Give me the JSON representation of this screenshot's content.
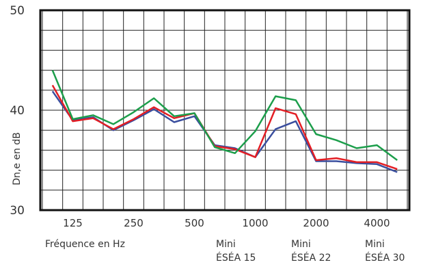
{
  "chart_data": {
    "type": "line",
    "ylabel": "Dn,e en dB",
    "xlabel": "Fréquence en Hz",
    "ylim": [
      30,
      50
    ],
    "y_ticks": [
      "30",
      "40",
      "50"
    ],
    "x_tick_labels": [
      {
        "label": "125",
        "x": 125
      },
      {
        "label": "250",
        "x": 250
      },
      {
        "label": "500",
        "x": 500
      },
      {
        "label": "1000",
        "x": 1000
      },
      {
        "label": "2000",
        "x": 2000
      },
      {
        "label": "4000",
        "x": 4000
      }
    ],
    "x": [
      100,
      125,
      160,
      200,
      250,
      315,
      400,
      500,
      630,
      800,
      1000,
      1250,
      1600,
      2000,
      2500,
      3150,
      4000,
      5000
    ],
    "series": [
      {
        "name": "Mini ÉSÉA 15",
        "color": "#3a4e9e",
        "values": [
          41.9,
          39.0,
          39.3,
          38.0,
          39.0,
          40.1,
          38.8,
          39.4,
          36.5,
          36.2,
          35.3,
          38.1,
          38.9,
          34.9,
          34.9,
          34.7,
          34.6,
          33.8
        ]
      },
      {
        "name": "Mini ÉSÉA 22",
        "color": "#e31e24",
        "values": [
          42.5,
          38.9,
          39.2,
          38.1,
          39.1,
          40.3,
          39.2,
          39.7,
          36.4,
          36.1,
          35.3,
          40.2,
          39.6,
          35.0,
          35.2,
          34.8,
          34.8,
          34.1
        ]
      },
      {
        "name": "Mini ÉSÉA 30",
        "color": "#1c9e4b",
        "values": [
          44.0,
          39.1,
          39.5,
          38.6,
          39.8,
          41.2,
          39.4,
          39.7,
          36.3,
          35.7,
          37.9,
          41.4,
          41.0,
          37.6,
          37.0,
          36.2,
          36.5,
          35.0
        ]
      }
    ],
    "legend_labels": [
      {
        "line1": "Mini",
        "line2": "ÉSÉA 15"
      },
      {
        "line1": "Mini",
        "line2": "ÉSÉA 22"
      },
      {
        "line1": "Mini",
        "line2": "ÉSÉA 30"
      }
    ],
    "grid": true
  }
}
